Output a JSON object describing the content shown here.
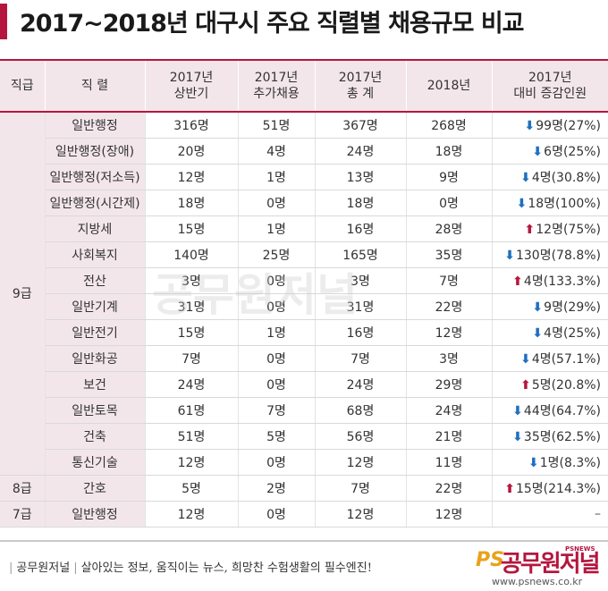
{
  "title": "2017~2018년 대구시 주요 직렬별 채용규모 비교",
  "watermark": "공무원저널",
  "table": {
    "headers": {
      "grade": "직급",
      "job": "직 렬",
      "first_half_1": "2017년",
      "first_half_2": "상반기",
      "additional_1": "2017년",
      "additional_2": "추가채용",
      "total_1": "2017년",
      "total_2": "총 계",
      "y2018": "2018년",
      "change_1": "2017년",
      "change_2": "대비 증감인원"
    },
    "groups": [
      {
        "grade": "9급",
        "rows": [
          {
            "job": "일반행정",
            "first_half": "316명",
            "additional": "51명",
            "total": "367명",
            "y2018": "268명",
            "direction": "down",
            "change": "99명(27%)"
          },
          {
            "job": "일반행정(장애)",
            "first_half": "20명",
            "additional": "4명",
            "total": "24명",
            "y2018": "18명",
            "direction": "down",
            "change": "6명(25%)"
          },
          {
            "job": "일반행정(저소득)",
            "first_half": "12명",
            "additional": "1명",
            "total": "13명",
            "y2018": "9명",
            "direction": "down",
            "change": "4명(30.8%)"
          },
          {
            "job": "일반행정(시간제)",
            "first_half": "18명",
            "additional": "0명",
            "total": "18명",
            "y2018": "0명",
            "direction": "down",
            "change": "18명(100%)"
          },
          {
            "job": "지방세",
            "first_half": "15명",
            "additional": "1명",
            "total": "16명",
            "y2018": "28명",
            "direction": "up",
            "change": "12명(75%)"
          },
          {
            "job": "사회복지",
            "first_half": "140명",
            "additional": "25명",
            "total": "165명",
            "y2018": "35명",
            "direction": "down",
            "change": "130명(78.8%)"
          },
          {
            "job": "전산",
            "first_half": "3명",
            "additional": "0명",
            "total": "3명",
            "y2018": "7명",
            "direction": "up",
            "change": "4명(133.3%)"
          },
          {
            "job": "일반기계",
            "first_half": "31명",
            "additional": "0명",
            "total": "31명",
            "y2018": "22명",
            "direction": "down",
            "change": "9명(29%)"
          },
          {
            "job": "일반전기",
            "first_half": "15명",
            "additional": "1명",
            "total": "16명",
            "y2018": "12명",
            "direction": "down",
            "change": "4명(25%)"
          },
          {
            "job": "일반화공",
            "first_half": "7명",
            "additional": "0명",
            "total": "7명",
            "y2018": "3명",
            "direction": "down",
            "change": "4명(57.1%)"
          },
          {
            "job": "보건",
            "first_half": "24명",
            "additional": "0명",
            "total": "24명",
            "y2018": "29명",
            "direction": "up",
            "change": "5명(20.8%)"
          },
          {
            "job": "일반토목",
            "first_half": "61명",
            "additional": "7명",
            "total": "68명",
            "y2018": "24명",
            "direction": "down",
            "change": "44명(64.7%)"
          },
          {
            "job": "건축",
            "first_half": "51명",
            "additional": "5명",
            "total": "56명",
            "y2018": "21명",
            "direction": "down",
            "change": "35명(62.5%)"
          },
          {
            "job": "통신기술",
            "first_half": "12명",
            "additional": "0명",
            "total": "12명",
            "y2018": "11명",
            "direction": "down",
            "change": "1명(8.3%)"
          }
        ]
      },
      {
        "grade": "8급",
        "rows": [
          {
            "job": "간호",
            "first_half": "5명",
            "additional": "2명",
            "total": "7명",
            "y2018": "22명",
            "direction": "up",
            "change": "15명(214.3%)"
          }
        ]
      },
      {
        "grade": "7급",
        "rows": [
          {
            "job": "일반행정",
            "first_half": "12명",
            "additional": "0명",
            "total": "12명",
            "y2018": "12명",
            "direction": "none",
            "change": "–"
          }
        ]
      }
    ]
  },
  "footer": {
    "brand": "공무원저널",
    "slogan": "살아있는 정보, 움직이는 뉴스, 희망찬 수험생활의 필수엔진!",
    "logo_ps": "PS",
    "logo_name": "공무원저널",
    "logo_tag": "PSNEWS",
    "url": "www.psnews.co.kr"
  }
}
